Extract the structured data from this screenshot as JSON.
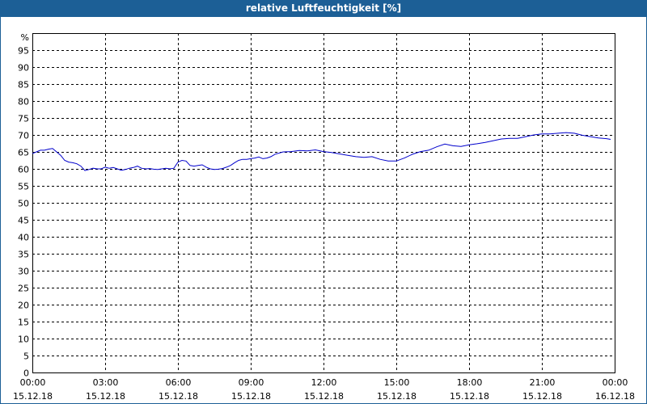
{
  "window": {
    "title": "relative Luftfeuchtigkeit [%]"
  },
  "colors": {
    "titlebar": "#1c5f96",
    "line": "#0000cc",
    "grid": "#000000"
  },
  "chart_data": {
    "type": "line",
    "title": "relative Luftfeuchtigkeit [%]",
    "ylabel": "%",
    "ylim": [
      0,
      100
    ],
    "yticks": [
      0,
      5,
      10,
      15,
      20,
      25,
      30,
      35,
      40,
      45,
      50,
      55,
      60,
      65,
      70,
      75,
      80,
      85,
      90,
      95
    ],
    "xlim": [
      "15.12.18 00:00",
      "16.12.18 00:00"
    ],
    "grid": true,
    "xticks": [
      {
        "time": "00:00",
        "date": "15.12.18"
      },
      {
        "time": "03:00",
        "date": "15.12.18"
      },
      {
        "time": "06:00",
        "date": "15.12.18"
      },
      {
        "time": "09:00",
        "date": "15.12.18"
      },
      {
        "time": "12:00",
        "date": "15.12.18"
      },
      {
        "time": "15:00",
        "date": "15.12.18"
      },
      {
        "time": "18:00",
        "date": "15.12.18"
      },
      {
        "time": "21:00",
        "date": "15.12.18"
      },
      {
        "time": "00:00",
        "date": "16.12.18"
      }
    ],
    "series": [
      {
        "x": [
          "00:00",
          "00:10",
          "00:20",
          "00:30",
          "00:40",
          "00:50",
          "01:00",
          "01:10",
          "01:20",
          "01:30",
          "01:40",
          "01:50",
          "02:00",
          "02:10",
          "02:20",
          "02:30",
          "02:40",
          "02:50",
          "03:00",
          "03:10",
          "03:20",
          "03:30",
          "03:40",
          "03:50",
          "04:00",
          "04:10",
          "04:20",
          "04:30",
          "04:40",
          "04:50",
          "05:00",
          "05:10",
          "05:20",
          "05:30",
          "05:40",
          "05:50",
          "06:00",
          "06:10",
          "06:20",
          "06:30",
          "06:40",
          "06:50",
          "07:00",
          "07:10",
          "07:20",
          "07:30",
          "07:40",
          "07:50",
          "08:00",
          "08:10",
          "08:20",
          "08:30",
          "08:40",
          "08:50",
          "09:00",
          "09:10",
          "09:20",
          "09:30",
          "09:40",
          "09:50",
          "10:00",
          "10:20",
          "10:40",
          "11:00",
          "11:20",
          "11:40",
          "12:00",
          "12:20",
          "12:40",
          "13:00",
          "13:20",
          "13:40",
          "14:00",
          "14:20",
          "14:40",
          "15:00",
          "15:20",
          "15:40",
          "16:00",
          "16:20",
          "16:40",
          "17:00",
          "17:20",
          "17:40",
          "18:00",
          "18:20",
          "18:40",
          "19:00",
          "19:20",
          "19:40",
          "20:00",
          "20:20",
          "20:40",
          "21:00",
          "21:20",
          "21:40",
          "22:00",
          "22:20",
          "22:40",
          "23:00",
          "23:20",
          "23:40",
          "23:50"
        ],
        "values": [
          64.5,
          65.0,
          65.5,
          65.5,
          65.8,
          66.0,
          65.0,
          64.0,
          62.5,
          62.0,
          61.8,
          61.5,
          60.8,
          59.5,
          59.8,
          60.2,
          60.0,
          60.0,
          60.5,
          60.2,
          60.4,
          60.0,
          59.6,
          59.8,
          60.2,
          60.4,
          60.8,
          60.2,
          60.0,
          60.1,
          59.9,
          59.8,
          60.0,
          60.2,
          60.0,
          60.2,
          62.0,
          62.5,
          62.3,
          61.0,
          60.8,
          61.0,
          61.2,
          60.5,
          60.0,
          59.8,
          59.9,
          60.1,
          60.5,
          61.0,
          61.8,
          62.5,
          62.8,
          62.8,
          63.0,
          63.2,
          63.5,
          63.0,
          63.2,
          63.6,
          64.3,
          65.0,
          65.1,
          65.4,
          65.3,
          65.6,
          65.1,
          64.8,
          64.4,
          64.0,
          63.6,
          63.4,
          63.6,
          62.8,
          62.3,
          62.3,
          63.2,
          64.3,
          65.1,
          65.5,
          66.5,
          67.3,
          66.8,
          66.6,
          67.1,
          67.4,
          67.8,
          68.3,
          68.8,
          69.0,
          69.0,
          69.5,
          70.0,
          70.3,
          70.3,
          70.5,
          70.7,
          70.5,
          69.9,
          69.5,
          69.1,
          68.9,
          68.7
        ]
      }
    ]
  }
}
